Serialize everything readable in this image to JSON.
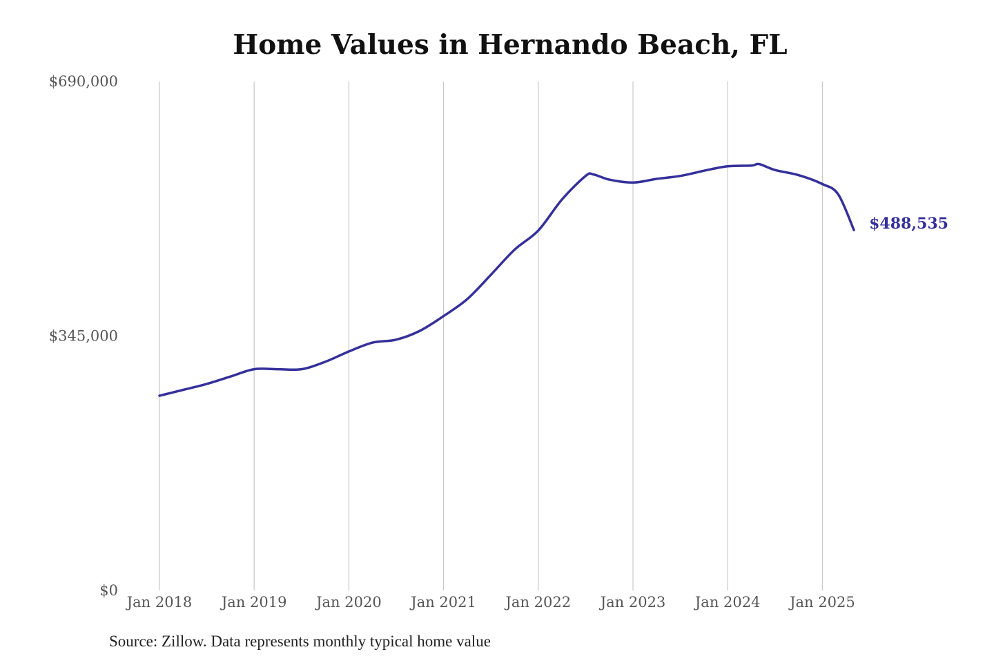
{
  "chart_data": {
    "type": "line",
    "title": "Home Values in Hernando Beach, FL",
    "xlabel": "",
    "ylabel": "",
    "x_tick_labels": [
      "Jan 2018",
      "Jan 2019",
      "Jan 2020",
      "Jan 2021",
      "Jan 2022",
      "Jan 2023",
      "Jan 2024",
      "Jan 2025"
    ],
    "y_tick_labels": [
      "$0",
      "$345,000",
      "$690,000"
    ],
    "y_ticks": [
      0,
      345000,
      690000
    ],
    "ylim": [
      0,
      690000
    ],
    "xlim": [
      "2018-01",
      "2025-05"
    ],
    "grid": "vertical",
    "legend": "none",
    "line_color": "#35309a",
    "series": [
      {
        "x": [
          "2018-01",
          "2018-04",
          "2018-07",
          "2018-10",
          "2019-01",
          "2019-04",
          "2019-07",
          "2019-10",
          "2020-01",
          "2020-04",
          "2020-07",
          "2020-10",
          "2021-01",
          "2021-04",
          "2021-07",
          "2021-10",
          "2022-01",
          "2022-04",
          "2022-07",
          "2022-08",
          "2022-10",
          "2023-01",
          "2023-04",
          "2023-07",
          "2023-10",
          "2024-01",
          "2024-04",
          "2024-05",
          "2024-07",
          "2024-10",
          "2025-01",
          "2025-03",
          "2025-05"
        ],
        "values": [
          264000,
          272000,
          280000,
          290000,
          300000,
          300000,
          300000,
          310000,
          324000,
          336000,
          340000,
          352000,
          372000,
          395000,
          428000,
          462000,
          488000,
          530000,
          562000,
          564000,
          557000,
          553000,
          558000,
          562000,
          569000,
          575000,
          576000,
          578000,
          570000,
          563000,
          551000,
          537000,
          488535
        ]
      }
    ],
    "end_label": "$488,535"
  },
  "source_note": "Source: Zillow. Data represents monthly typical home value"
}
